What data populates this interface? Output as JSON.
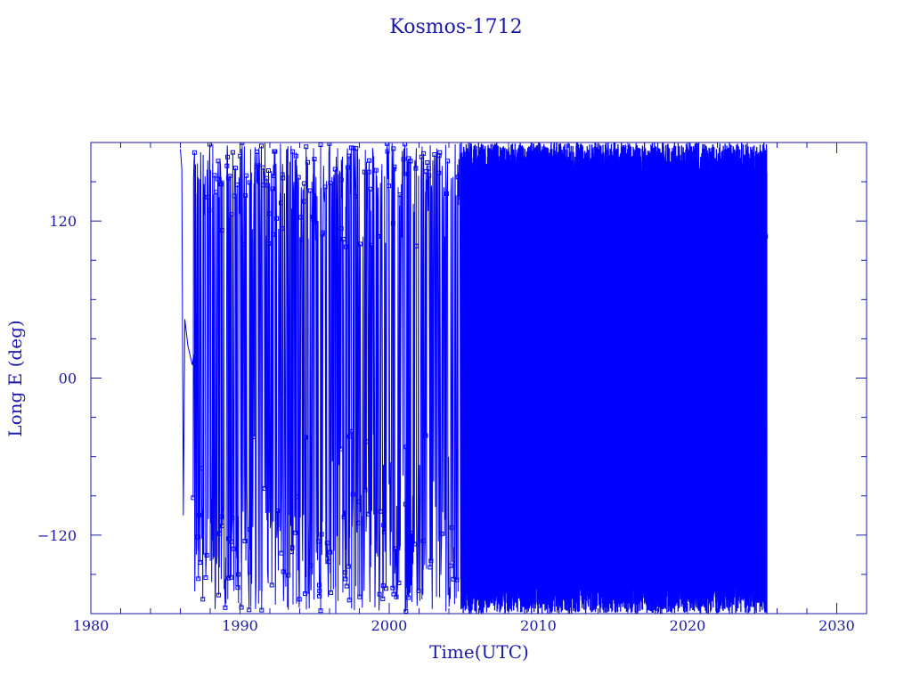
{
  "chart_data": {
    "type": "line",
    "title": "Kosmos-1712",
    "xlabel": "Time(UTC)",
    "ylabel": "Long E (deg)",
    "xlim": [
      1980,
      2032
    ],
    "ylim": [
      -180,
      180
    ],
    "x_ticks": [
      1980,
      1990,
      2000,
      2010,
      2020,
      2030
    ],
    "y_ticks": [
      120,
      0,
      -120
    ],
    "y_tick_labels": [
      "120",
      "00",
      "−120"
    ],
    "grid": false,
    "legend": "none",
    "colors": {
      "series": "#0000ff",
      "frame": "#1a1aa6",
      "text": "#1a1aa6"
    },
    "series": [
      {
        "marker": "square",
        "x": [
          1986.0,
          1986.1,
          1986.2,
          1986.3,
          1986.4,
          1986.5,
          1986.6,
          1986.7,
          1986.8,
          1986.9,
          1987.0,
          1987.2,
          1987.5,
          1988.0,
          1988.5,
          1989.0,
          1990.0,
          1991.0,
          1992.0,
          1993.0,
          1994.0,
          1995.0,
          1996.0,
          1997.0,
          1998.0,
          1999.0,
          2000.0,
          2001.0,
          2002.0,
          2003.0,
          2004.0,
          2004.8,
          2005.0,
          2006.0,
          2008.0,
          2010.0,
          2012.0,
          2013.0,
          2015.0,
          2018.0,
          2020.0,
          2022.0,
          2024.0,
          2025.3
        ],
        "y": [
          175,
          160,
          -105,
          45,
          35,
          25,
          20,
          15,
          10,
          18,
          -180,
          180,
          -120,
          140,
          120,
          -60,
          60,
          -100,
          150,
          -160,
          -40,
          170,
          -60,
          130,
          160,
          -160,
          140,
          -60,
          130,
          -170,
          150,
          -80,
          150,
          -130,
          170,
          -170,
          140,
          -160,
          170,
          -170,
          160,
          -170,
          60,
          -70
        ]
      }
    ]
  }
}
